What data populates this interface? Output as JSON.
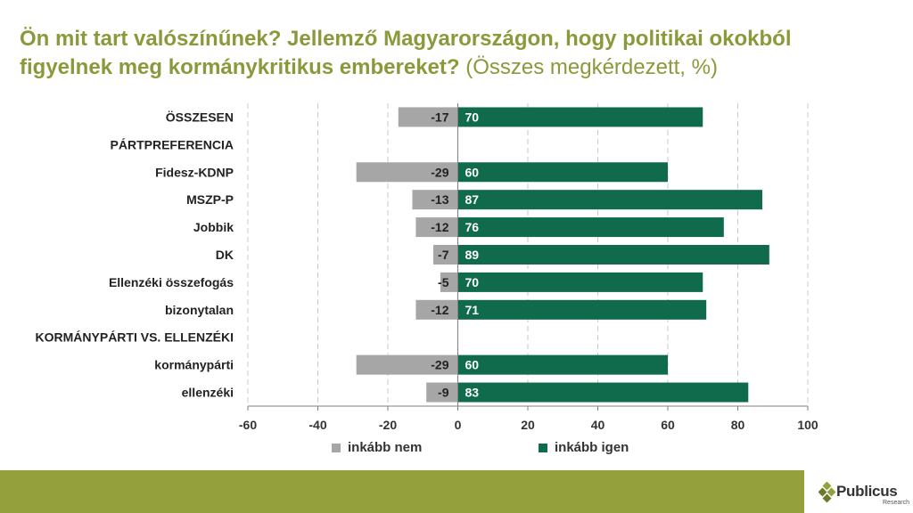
{
  "title": {
    "main": "Ön mit tart valószínűnek? Jellemző Magyarországon, hogy politikai okokból figyelnek meg kormánykritikus embereket?",
    "sub": " (Összes megkérdezett, %)"
  },
  "colors": {
    "neg": "#a6a6a6",
    "pos": "#0f6b4c",
    "title": "#8a9a3a",
    "footer": "#94a03c"
  },
  "legend": {
    "neg_label": "inkább nem",
    "pos_label": "inkább igen"
  },
  "logo": {
    "name": "Publicus",
    "sub": "Research"
  },
  "chart_data": {
    "type": "bar",
    "orientation": "horizontal",
    "stacked": "diverging",
    "categories": [
      "ÖSSZESEN",
      "PÁRTPREFERENCIA",
      "Fidesz-KDNP",
      "MSZP-P",
      "Jobbik",
      "DK",
      "Ellenzéki összefogás",
      "bizonytalan",
      "KORMÁNYPÁRTI VS. ELLENZÉKI",
      "kormánypárti",
      "ellenzéki"
    ],
    "series": [
      {
        "name": "inkább nem",
        "values": [
          -17,
          null,
          -29,
          -13,
          -12,
          -7,
          -5,
          -12,
          null,
          -29,
          -9
        ]
      },
      {
        "name": "inkább igen",
        "values": [
          70,
          null,
          60,
          87,
          76,
          89,
          70,
          71,
          null,
          60,
          83
        ]
      }
    ],
    "xlim": [
      -60,
      100
    ],
    "xticks": [
      -60,
      -40,
      -20,
      0,
      20,
      40,
      60,
      80,
      100
    ],
    "grid": "vertical-dashed"
  }
}
